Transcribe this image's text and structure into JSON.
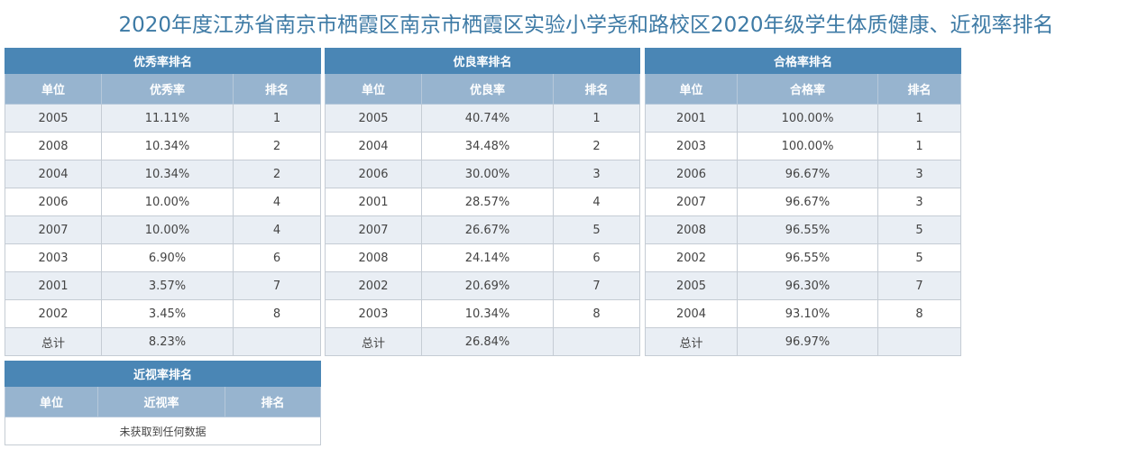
{
  "page_title": "2020年度江苏省南京市栖霞区南京市栖霞区实验小学尧和路校区2020年级学生体质健康、近视率排名",
  "excellent": {
    "title": "优秀率排名",
    "headers": [
      "单位",
      "优秀率",
      "排名"
    ],
    "rows": [
      [
        "2005",
        "11.11%",
        "1"
      ],
      [
        "2008",
        "10.34%",
        "2"
      ],
      [
        "2004",
        "10.34%",
        "2"
      ],
      [
        "2006",
        "10.00%",
        "4"
      ],
      [
        "2007",
        "10.00%",
        "4"
      ],
      [
        "2003",
        "6.90%",
        "6"
      ],
      [
        "2001",
        "3.57%",
        "7"
      ],
      [
        "2002",
        "3.45%",
        "8"
      ]
    ],
    "total": [
      "总计",
      "8.23%",
      ""
    ]
  },
  "good": {
    "title": "优良率排名",
    "headers": [
      "单位",
      "优良率",
      "排名"
    ],
    "rows": [
      [
        "2005",
        "40.74%",
        "1"
      ],
      [
        "2004",
        "34.48%",
        "2"
      ],
      [
        "2006",
        "30.00%",
        "3"
      ],
      [
        "2001",
        "28.57%",
        "4"
      ],
      [
        "2007",
        "26.67%",
        "5"
      ],
      [
        "2008",
        "24.14%",
        "6"
      ],
      [
        "2002",
        "20.69%",
        "7"
      ],
      [
        "2003",
        "10.34%",
        "8"
      ]
    ],
    "total": [
      "总计",
      "26.84%",
      ""
    ]
  },
  "pass": {
    "title": "合格率排名",
    "headers": [
      "单位",
      "合格率",
      "排名"
    ],
    "rows": [
      [
        "2001",
        "100.00%",
        "1"
      ],
      [
        "2003",
        "100.00%",
        "1"
      ],
      [
        "2006",
        "96.67%",
        "3"
      ],
      [
        "2007",
        "96.67%",
        "3"
      ],
      [
        "2008",
        "96.55%",
        "5"
      ],
      [
        "2002",
        "96.55%",
        "5"
      ],
      [
        "2005",
        "96.30%",
        "7"
      ],
      [
        "2004",
        "93.10%",
        "8"
      ]
    ],
    "total": [
      "总计",
      "96.97%",
      ""
    ]
  },
  "myopia": {
    "title": "近视率排名",
    "headers": [
      "单位",
      "近视率",
      "排名"
    ],
    "empty_message": "未获取到任何数据"
  },
  "colors": {
    "title_text": "#3d7aa5",
    "panel_title_bg": "#4a86b5",
    "column_header_bg": "#97b4cf",
    "row_alt_bg": "#e9eef4"
  }
}
